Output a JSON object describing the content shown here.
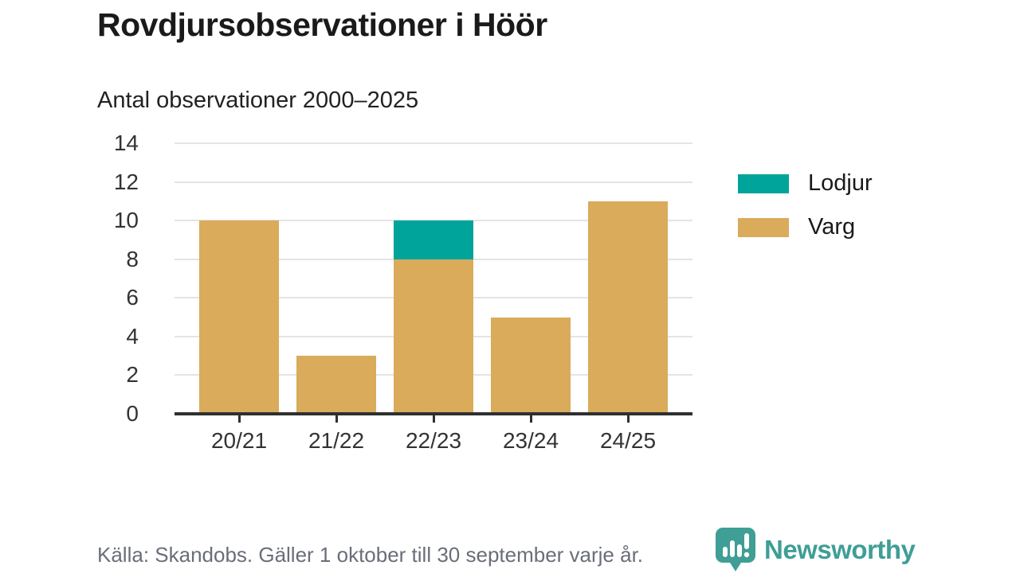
{
  "header": {
    "title": "Rovdjursobservationer i Höör",
    "subtitle": "Antal observationer 2000–2025"
  },
  "chart_data": {
    "type": "bar",
    "stacked": true,
    "title": "Rovdjursobservationer i Höör",
    "subtitle": "Antal observationer 2000–2025",
    "categories": [
      "20/21",
      "21/22",
      "22/23",
      "23/24",
      "24/25"
    ],
    "series": [
      {
        "name": "Lodjur",
        "color": "#00a49a",
        "values": [
          0,
          0,
          2,
          0,
          0
        ]
      },
      {
        "name": "Varg",
        "color": "#d9ab5b",
        "values": [
          10,
          3,
          8,
          5,
          11
        ]
      }
    ],
    "totals": [
      10,
      3,
      10,
      5,
      11
    ],
    "ylim": [
      0,
      14
    ],
    "yticks": [
      0,
      2,
      4,
      6,
      8,
      10,
      12,
      14
    ],
    "xlabel": "",
    "ylabel": "",
    "grid": true,
    "legend_position": "right"
  },
  "footer": {
    "source": "Källa: Skandobs. Gäller 1 oktober till 30 september varje år.",
    "brand": "Newsworthy"
  },
  "colors": {
    "lodjur": "#00a49a",
    "varg": "#d9ab5b",
    "axis": "#2f2f2f",
    "gridline": "#e4e4e4",
    "text_dark": "#1a1a1a",
    "text_gray": "#6a6e79",
    "brand_teal": "#3f9e96"
  }
}
